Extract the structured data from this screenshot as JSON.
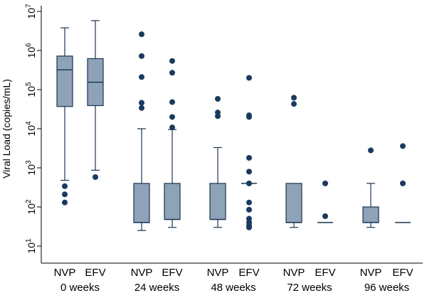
{
  "chart_data": {
    "type": "box",
    "title": "",
    "ylabel": "Viral Load (copies/mL)",
    "yscale": "log10",
    "ylim": [
      10,
      10000000
    ],
    "yticks": [
      {
        "exp": "1",
        "value": 10
      },
      {
        "exp": "2",
        "value": 100
      },
      {
        "exp": "3",
        "value": 1000
      },
      {
        "exp": "4",
        "value": 10000
      },
      {
        "exp": "5",
        "value": 100000
      },
      {
        "exp": "6",
        "value": 1000000
      },
      {
        "exp": "7",
        "value": 10000000
      }
    ],
    "tick_base": "10",
    "groups": [
      {
        "label": "0 weeks",
        "boxes": [
          {
            "label": "NVP",
            "min": 480,
            "q1": 37000,
            "median": 320000,
            "q3": 720000,
            "max": 3800000,
            "outliers": [
              340,
              210,
              130
            ]
          },
          {
            "label": "EFV",
            "min": 870,
            "q1": 39000,
            "median": 155000,
            "q3": 620000,
            "max": 5800000,
            "outliers": [
              580
            ]
          }
        ]
      },
      {
        "label": "24 weeks",
        "boxes": [
          {
            "label": "NVP",
            "min": 25,
            "q1": 40,
            "median": 40,
            "q3": 400,
            "max": 10000,
            "outliers": [
              2600000,
              720000,
              210000,
              46000,
              34000
            ]
          },
          {
            "label": "EFV",
            "min": 30,
            "q1": 48,
            "median": 48,
            "q3": 400,
            "max": 9500,
            "outliers": [
              540000,
              270000,
              48000,
              20000,
              10800
            ]
          }
        ]
      },
      {
        "label": "48 weeks",
        "boxes": [
          {
            "label": "NVP",
            "min": 30,
            "q1": 48,
            "median": 48,
            "q3": 400,
            "max": 3300,
            "outliers": [
              58000,
              26000,
              21000
            ]
          },
          {
            "label": "EFV",
            "min": 400,
            "q1": 400,
            "median": 400,
            "q3": 400,
            "max": 400,
            "outliers": [
              200000,
              22000,
              20000,
              1800,
              800,
              400,
              130,
              85,
              50,
              40,
              33,
              30
            ]
          }
        ]
      },
      {
        "label": "72 weeks",
        "boxes": [
          {
            "label": "NVP",
            "min": 30,
            "q1": 40,
            "median": 40,
            "q3": 400,
            "max": 400,
            "outliers": [
              62000,
              43000
            ]
          },
          {
            "label": "EFV",
            "min": 40,
            "q1": 40,
            "median": 40,
            "q3": 40,
            "max": 40,
            "outliers": [
              400,
              58
            ]
          }
        ]
      },
      {
        "label": "96 weeks",
        "boxes": [
          {
            "label": "NVP",
            "min": 30,
            "q1": 40,
            "median": 40,
            "q3": 100,
            "max": 400,
            "outliers": [
              2800
            ]
          },
          {
            "label": "EFV",
            "min": 40,
            "q1": 40,
            "median": 40,
            "q3": 40,
            "max": 40,
            "outliers": [
              3600,
              400
            ]
          }
        ]
      }
    ],
    "colors": {
      "box_fill": "#8ea2b8",
      "box_stroke": "#1a3552",
      "point": "#1a3a5e",
      "axis": "#000000"
    }
  }
}
